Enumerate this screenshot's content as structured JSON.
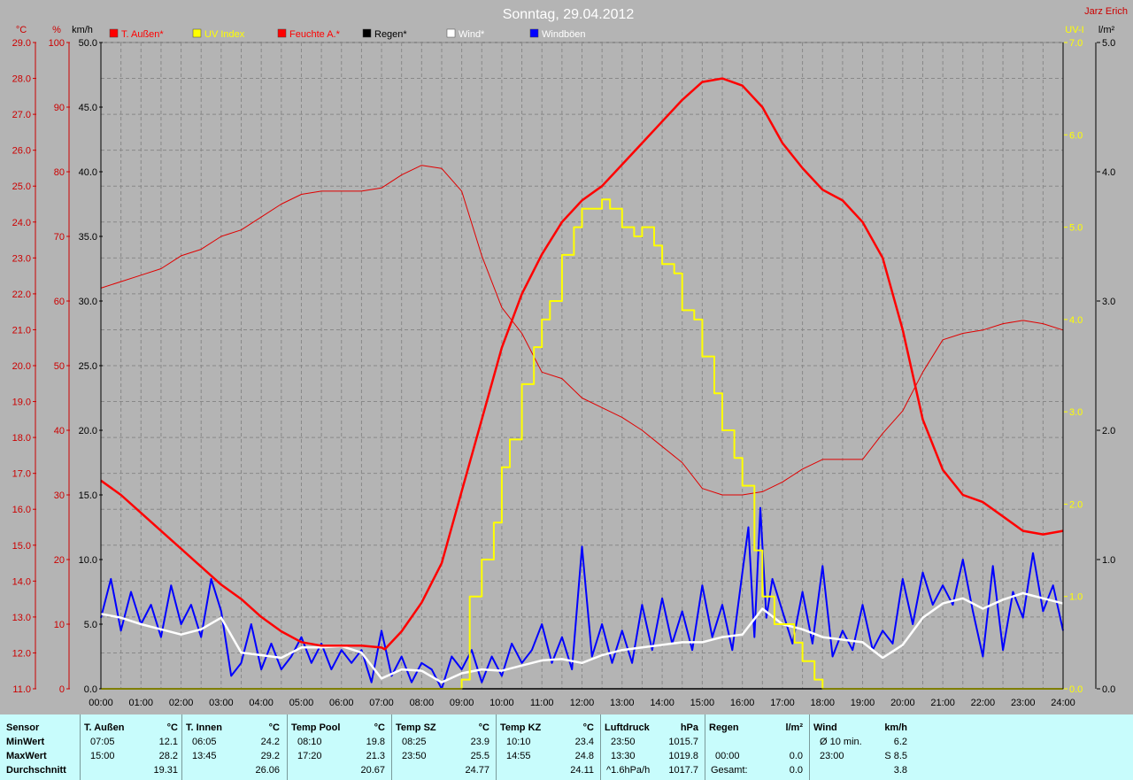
{
  "title": "Sonntag, 29.04.2012",
  "author": "Jarz Erich",
  "axes": {
    "left_temp_unit": "°C",
    "left_pct_unit": "%",
    "left_kmh_unit": "km/h",
    "right_uv_unit": "UV-I",
    "right_rain_unit": "l/m²",
    "temp_ticks": [
      "29.0",
      "28.0",
      "27.0",
      "26.0",
      "25.0",
      "24.0",
      "23.0",
      "22.0",
      "21.0",
      "20.0",
      "19.0",
      "18.0",
      "17.0",
      "16.0",
      "15.0",
      "14.0",
      "13.0",
      "12.0",
      "11.0"
    ],
    "pct_ticks": [
      "100",
      "90",
      "80",
      "70",
      "60",
      "50",
      "40",
      "30",
      "20",
      "10",
      "0"
    ],
    "kmh_ticks": [
      "50.0",
      "45.0",
      "40.0",
      "35.0",
      "30.0",
      "25.0",
      "20.0",
      "15.0",
      "10.0",
      "5.0",
      "0.0"
    ],
    "uv_ticks": [
      "7.0",
      "6.0",
      "5.0",
      "4.0",
      "3.0",
      "2.0",
      "1.0",
      "0.0"
    ],
    "rain_ticks": [
      "5.0",
      "4.0",
      "3.0",
      "2.0",
      "1.0",
      "0.0"
    ],
    "x_ticks": [
      "00:00",
      "01:00",
      "02:00",
      "03:00",
      "04:00",
      "05:00",
      "06:00",
      "07:00",
      "08:00",
      "09:00",
      "10:00",
      "11:00",
      "12:00",
      "13:00",
      "14:00",
      "15:00",
      "16:00",
      "17:00",
      "18:00",
      "19:00",
      "20:00",
      "21:00",
      "22:00",
      "23:00",
      "24:00"
    ]
  },
  "legend": [
    {
      "label": "T. Außen*",
      "color": "#ff0000"
    },
    {
      "label": "UV Index",
      "color": "#ffff00"
    },
    {
      "label": "Feuchte A.*",
      "color": "#ff0000"
    },
    {
      "label": "Regen*",
      "color": "#000000"
    },
    {
      "label": "Wind*",
      "color": "#ffffff"
    },
    {
      "label": "Windböen",
      "color": "#0000ff"
    }
  ],
  "colors": {
    "temp": "#ff0000",
    "humidity": "#e00000",
    "uv": "#ffff00",
    "wind": "#ffffff",
    "gust": "#0000ff",
    "rain": "#000000",
    "plot_bg": "#b4b4b4",
    "grid": "#888888",
    "stats_bg": "#c8fcfc"
  },
  "chart_data": {
    "type": "line",
    "title": "Sonntag, 29.04.2012",
    "xlim": [
      0,
      24
    ],
    "axes_ranges": {
      "temp_c": [
        11,
        29
      ],
      "humidity_pct": [
        0,
        100
      ],
      "wind_kmh": [
        0,
        50
      ],
      "uv": [
        0,
        7
      ],
      "rain_lm2": [
        0,
        5
      ]
    },
    "grid": true,
    "legend_position": "top",
    "series": [
      {
        "name": "T. Außen*",
        "axis": "temp_c",
        "x": [
          0,
          0.5,
          1,
          1.5,
          2,
          2.5,
          3,
          3.5,
          4,
          4.5,
          5,
          5.5,
          6,
          6.5,
          7,
          7.08,
          7.5,
          8,
          8.5,
          9,
          9.5,
          10,
          10.5,
          11,
          11.5,
          12,
          12.5,
          13,
          13.5,
          14,
          14.5,
          15,
          15.5,
          16,
          16.5,
          17,
          17.5,
          18,
          18.5,
          19,
          19.5,
          20,
          20.5,
          21,
          21.5,
          22,
          22.5,
          23,
          23.5,
          24
        ],
        "y": [
          16.8,
          16.4,
          15.9,
          15.4,
          14.9,
          14.4,
          13.9,
          13.5,
          13.0,
          12.6,
          12.3,
          12.2,
          12.2,
          12.2,
          12.15,
          12.1,
          12.6,
          13.4,
          14.5,
          16.5,
          18.5,
          20.5,
          22.0,
          23.1,
          24.0,
          24.6,
          25.0,
          25.6,
          26.2,
          26.8,
          27.4,
          27.9,
          28.0,
          27.8,
          27.2,
          26.2,
          25.5,
          24.9,
          24.6,
          24.0,
          23.0,
          21.0,
          18.5,
          17.1,
          16.4,
          16.2,
          15.8,
          15.4,
          15.3,
          15.4
        ]
      },
      {
        "name": "Feuchte A.*",
        "axis": "humidity_pct",
        "x": [
          0,
          0.5,
          1,
          1.5,
          2,
          2.5,
          3,
          3.5,
          4,
          4.5,
          5,
          5.5,
          6,
          6.5,
          7,
          7.5,
          8,
          8.5,
          9,
          9.5,
          10,
          10.5,
          11,
          11.5,
          12,
          12.5,
          13,
          13.5,
          14,
          14.5,
          15,
          15.5,
          16,
          16.5,
          17,
          17.5,
          18,
          18.5,
          19,
          19.5,
          20,
          20.5,
          21,
          21.5,
          22,
          22.5,
          23,
          23.5,
          24
        ],
        "y": [
          62,
          63,
          64,
          65,
          67,
          68,
          70,
          71,
          73,
          75,
          76.5,
          77,
          77,
          77,
          77.5,
          79.5,
          81,
          80.5,
          77,
          67,
          59,
          55,
          49,
          48,
          45,
          43.5,
          42,
          40,
          37.5,
          35,
          31,
          30,
          30,
          30.5,
          32,
          34,
          35.5,
          35.5,
          35.5,
          39.5,
          43,
          49,
          54,
          55,
          55.5,
          56.5,
          57,
          56.5,
          55.5
        ]
      },
      {
        "name": "UV Index",
        "axis": "uv",
        "x": [
          0,
          8.5,
          9.0,
          9.2,
          9.5,
          9.8,
          10.0,
          10.2,
          10.5,
          10.8,
          11.0,
          11.2,
          11.5,
          11.8,
          12.0,
          12.3,
          12.5,
          12.7,
          13.0,
          13.3,
          13.5,
          13.8,
          14.0,
          14.3,
          14.5,
          14.8,
          15.0,
          15.3,
          15.5,
          15.8,
          16.0,
          16.3,
          16.5,
          16.8,
          17.0,
          17.3,
          17.5,
          17.8,
          18.0,
          24
        ],
        "y": [
          0,
          0,
          0.1,
          1.0,
          1.4,
          1.8,
          2.4,
          2.7,
          3.3,
          3.7,
          4.0,
          4.2,
          4.7,
          5.0,
          5.2,
          5.2,
          5.3,
          5.2,
          5.0,
          4.9,
          5.0,
          4.8,
          4.6,
          4.5,
          4.1,
          4.0,
          3.6,
          3.2,
          2.8,
          2.5,
          2.2,
          1.5,
          1.0,
          0.7,
          0.7,
          0.5,
          0.3,
          0.1,
          0,
          0
        ]
      },
      {
        "name": "Wind*",
        "axis": "wind_kmh",
        "x": [
          0,
          0.5,
          1,
          1.5,
          2,
          2.5,
          3,
          3.5,
          4,
          4.5,
          5,
          5.5,
          6,
          6.5,
          7,
          7.5,
          8,
          8.5,
          9,
          9.5,
          10,
          10.5,
          11,
          11.5,
          12,
          12.5,
          13,
          13.5,
          14,
          14.5,
          15,
          15.5,
          16,
          16.5,
          17,
          17.5,
          18,
          18.5,
          19,
          19.5,
          20,
          20.5,
          21,
          21.5,
          22,
          22.5,
          23,
          23.5,
          24
        ],
        "y": [
          5.8,
          5.5,
          5.0,
          4.6,
          4.2,
          4.6,
          5.5,
          2.8,
          2.6,
          2.4,
          3.2,
          3.2,
          3.3,
          2.8,
          0.8,
          1.5,
          1.4,
          0.5,
          1.2,
          1.5,
          1.4,
          1.8,
          2.2,
          2.3,
          2.0,
          2.6,
          3.0,
          3.2,
          3.4,
          3.6,
          3.6,
          4.0,
          4.2,
          6.2,
          5.0,
          4.6,
          4.0,
          3.8,
          3.6,
          2.4,
          3.4,
          5.5,
          6.6,
          7.0,
          6.2,
          6.9,
          7.4,
          7.0,
          6.6
        ]
      },
      {
        "name": "Windböen",
        "axis": "wind_kmh",
        "x": [
          0,
          0.25,
          0.5,
          0.75,
          1,
          1.25,
          1.5,
          1.75,
          2,
          2.25,
          2.5,
          2.75,
          3,
          3.25,
          3.5,
          3.75,
          4,
          4.25,
          4.5,
          4.75,
          5,
          5.25,
          5.5,
          5.75,
          6,
          6.25,
          6.5,
          6.75,
          7,
          7.25,
          7.5,
          7.75,
          8,
          8.25,
          8.5,
          8.75,
          9,
          9.25,
          9.5,
          9.75,
          10,
          10.25,
          10.5,
          10.75,
          11,
          11.25,
          11.5,
          11.75,
          12,
          12.25,
          12.5,
          12.75,
          13,
          13.25,
          13.5,
          13.75,
          14,
          14.25,
          14.5,
          14.75,
          15,
          15.25,
          15.5,
          15.75,
          16,
          16.15,
          16.3,
          16.45,
          16.6,
          16.75,
          17,
          17.25,
          17.5,
          17.75,
          18,
          18.25,
          18.5,
          18.75,
          19,
          19.25,
          19.5,
          19.75,
          20,
          20.25,
          20.5,
          20.75,
          21,
          21.25,
          21.5,
          21.75,
          22,
          22.25,
          22.5,
          22.75,
          23,
          23.25,
          23.5,
          23.75,
          24
        ],
        "y": [
          5.5,
          8.5,
          4.5,
          7.5,
          5.0,
          6.5,
          4.0,
          8.0,
          5.0,
          6.5,
          4.0,
          8.5,
          6.0,
          1.0,
          2.0,
          5.0,
          1.5,
          3.5,
          1.5,
          2.5,
          4.0,
          2.0,
          3.5,
          1.5,
          3.0,
          2.0,
          3.0,
          0.5,
          4.5,
          1.0,
          2.5,
          0.5,
          2.0,
          1.5,
          0.0,
          2.5,
          1.5,
          3.0,
          0.5,
          2.5,
          1.0,
          3.5,
          2.0,
          3.0,
          5.0,
          2.0,
          4.0,
          1.5,
          11.0,
          2.5,
          5.0,
          2.0,
          4.5,
          2.0,
          6.5,
          3.0,
          7.0,
          3.5,
          6.0,
          3.0,
          8.0,
          4.0,
          6.5,
          3.0,
          9.0,
          12.5,
          4.0,
          14.0,
          5.5,
          8.5,
          6.0,
          3.5,
          7.5,
          3.5,
          9.5,
          2.5,
          4.5,
          3.0,
          6.5,
          3.0,
          4.5,
          3.5,
          8.5,
          5.0,
          9.0,
          6.5,
          8.0,
          6.5,
          10.0,
          6.0,
          2.5,
          9.5,
          3.0,
          7.5,
          5.5,
          10.5,
          6.0,
          8.0,
          4.5
        ]
      },
      {
        "name": "Regen*",
        "axis": "rain_lm2",
        "x": [
          0,
          24
        ],
        "y": [
          0,
          0
        ]
      }
    ]
  },
  "stats": {
    "row_labels": [
      "Sensor",
      "MinWert",
      "MaxWert",
      "Durchschnitt"
    ],
    "columns": [
      {
        "name": "T. Außen",
        "unit": "°C",
        "min_time": "07:05",
        "min": "12.1",
        "max_time": "15:00",
        "max": "28.2",
        "avg_time": "",
        "avg": "19.31"
      },
      {
        "name": "T. Innen",
        "unit": "°C",
        "min_time": "06:05",
        "min": "24.2",
        "max_time": "13:45",
        "max": "29.2",
        "avg_time": "",
        "avg": "26.06"
      },
      {
        "name": "Temp Pool",
        "unit": "°C",
        "min_time": "08:10",
        "min": "19.8",
        "max_time": "17:20",
        "max": "21.3",
        "avg_time": "",
        "avg": "20.67"
      },
      {
        "name": "Temp SZ",
        "unit": "°C",
        "min_time": "08:25",
        "min": "23.9",
        "max_time": "23:50",
        "max": "25.5",
        "avg_time": "",
        "avg": "24.77"
      },
      {
        "name": "Temp KZ",
        "unit": "°C",
        "min_time": "10:10",
        "min": "23.4",
        "max_time": "14:55",
        "max": "24.8",
        "avg_time": "",
        "avg": "24.11"
      },
      {
        "name": "Luftdruck",
        "unit": "hPa",
        "min_time": "23:50",
        "min": "1015.7",
        "max_time": "13:30",
        "max": "1019.8",
        "avg_time": "^1.6hPa/h",
        "avg": "1017.7"
      },
      {
        "name": "Regen",
        "unit": "l/m²",
        "min_time": "",
        "min": "",
        "max_time": "00:00",
        "max": "0.0",
        "avg_time": "Gesamt:",
        "avg": "0.0"
      },
      {
        "name": "Wind",
        "unit": "km/h",
        "min_time": "Ø 10 min.",
        "min": "6.2",
        "max_time": "23:00",
        "max": "S 8.5",
        "avg_time": "",
        "avg": "3.8"
      }
    ]
  }
}
